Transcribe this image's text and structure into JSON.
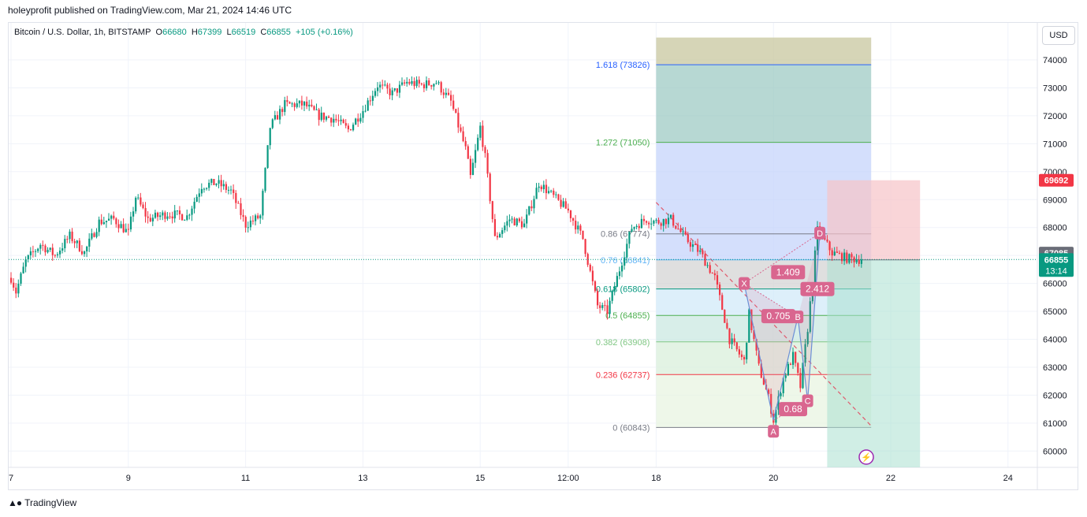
{
  "header": {
    "published": "holeyprofit published on TradingView.com, Mar 21, 2024 14:46 UTC"
  },
  "legend": {
    "symbol": "Bitcoin / U.S. Dollar, 1h, BITSTAMP",
    "o_label": "O",
    "o": "66680",
    "h_label": "H",
    "h": "67399",
    "l_label": "L",
    "l": "66519",
    "c_label": "C",
    "c": "66855",
    "change": "+105 (+0.16%)"
  },
  "currency_button": "USD",
  "footer": {
    "brand": "TradingView",
    "logo": "tradingview-logo-icon"
  },
  "colors": {
    "up": "#089981",
    "down": "#f23645",
    "grid": "#f0f3fa",
    "pattern": "#d9668f",
    "stop_zone": "#f7c3c7",
    "target_zone": "#a9e0cf"
  },
  "chart_data": {
    "type": "candlestick",
    "y_axis": {
      "min": 59500,
      "max": 74800,
      "ticks": [
        "74000",
        "73000",
        "72000",
        "71000",
        "70000",
        "69000",
        "68000",
        "67000",
        "66000",
        "65000",
        "64000",
        "63000",
        "62000",
        "61000",
        "60000"
      ]
    },
    "x_axis": {
      "ticks": [
        {
          "label": "7",
          "t": 0
        },
        {
          "label": "9",
          "t": 48
        },
        {
          "label": "11",
          "t": 96
        },
        {
          "label": "13",
          "t": 144
        },
        {
          "label": "15",
          "t": 192
        },
        {
          "label": "12:00",
          "t": 228
        },
        {
          "label": "18",
          "t": 264
        },
        {
          "label": "20",
          "t": 312
        },
        {
          "label": "22",
          "t": 360
        },
        {
          "label": "24",
          "t": 408
        }
      ]
    },
    "price_path": [
      [
        0,
        66200
      ],
      [
        2,
        65700
      ],
      [
        6,
        66800
      ],
      [
        12,
        67400
      ],
      [
        18,
        67000
      ],
      [
        24,
        67700
      ],
      [
        30,
        67100
      ],
      [
        36,
        68200
      ],
      [
        42,
        68300
      ],
      [
        48,
        67800
      ],
      [
        51,
        69100
      ],
      [
        56,
        68300
      ],
      [
        64,
        68500
      ],
      [
        72,
        68400
      ],
      [
        78,
        69500
      ],
      [
        84,
        69600
      ],
      [
        90,
        69300
      ],
      [
        96,
        68100
      ],
      [
        102,
        68400
      ],
      [
        106,
        71600
      ],
      [
        112,
        72400
      ],
      [
        120,
        72400
      ],
      [
        126,
        72000
      ],
      [
        132,
        71900
      ],
      [
        138,
        71500
      ],
      [
        144,
        72200
      ],
      [
        150,
        73100
      ],
      [
        156,
        72800
      ],
      [
        162,
        73200
      ],
      [
        168,
        73100
      ],
      [
        174,
        73200
      ],
      [
        180,
        72500
      ],
      [
        186,
        70800
      ],
      [
        188,
        69800
      ],
      [
        192,
        71600
      ],
      [
        194,
        70500
      ],
      [
        198,
        67600
      ],
      [
        204,
        68300
      ],
      [
        210,
        68100
      ],
      [
        216,
        69600
      ],
      [
        222,
        69100
      ],
      [
        228,
        68600
      ],
      [
        234,
        67600
      ],
      [
        240,
        65200
      ],
      [
        244,
        65000
      ],
      [
        248,
        66200
      ],
      [
        254,
        68000
      ],
      [
        260,
        68300
      ],
      [
        264,
        68200
      ],
      [
        270,
        68300
      ],
      [
        276,
        67600
      ],
      [
        282,
        67100
      ],
      [
        288,
        66200
      ],
      [
        294,
        64000
      ],
      [
        300,
        63200
      ],
      [
        302,
        64900
      ],
      [
        306,
        63000
      ],
      [
        310,
        61900
      ],
      [
        312,
        61100
      ],
      [
        316,
        62600
      ],
      [
        320,
        63400
      ],
      [
        323,
        62300
      ],
      [
        326,
        64400
      ],
      [
        330,
        67900
      ],
      [
        336,
        67100
      ],
      [
        342,
        66900
      ],
      [
        348,
        66850
      ]
    ],
    "last_price": "66855",
    "countdown": "13:14",
    "price_labels": [
      {
        "value": "69692",
        "color": "#f23645"
      },
      {
        "value": "67085",
        "color": "#6a6d78"
      }
    ],
    "fibonacci": {
      "t_start": 264,
      "t_end": 352,
      "levels": [
        {
          "label": "1.618 (73826)",
          "price": 73826,
          "color": "#2962ff"
        },
        {
          "label": "1.272 (71050)",
          "price": 71050,
          "color": "#4caf50"
        },
        {
          "label": "0.86 (67774)",
          "price": 67774,
          "color": "#787b86"
        },
        {
          "label": "0.76 (66841)",
          "price": 66841,
          "color": "#64b5f6"
        },
        {
          "label": "0.618 (65802)",
          "price": 65802,
          "color": "#089981"
        },
        {
          "label": "0.5 (64855)",
          "price": 64855,
          "color": "#4caf50"
        },
        {
          "label": "0.382 (63908)",
          "price": 63908,
          "color": "#81c784"
        },
        {
          "label": "0.236 (62737)",
          "price": 62737,
          "color": "#f23645"
        },
        {
          "label": "0 (60843)",
          "price": 60843,
          "color": "#787b86"
        }
      ],
      "top_fill_price": 74800
    },
    "pattern": {
      "points": [
        {
          "label": "X",
          "t": 300,
          "price": 66000
        },
        {
          "label": "A",
          "t": 312,
          "price": 61100
        },
        {
          "label": "B",
          "t": 322,
          "price": 64800
        },
        {
          "label": "C",
          "t": 326,
          "price": 61800
        },
        {
          "label": "D",
          "t": 331,
          "price": 67800
        }
      ],
      "ratios": [
        {
          "label": "1.409",
          "t": 318,
          "price": 66400
        },
        {
          "label": "0.705",
          "t": 314,
          "price": 64830
        },
        {
          "label": "2.412",
          "t": 330,
          "price": 65800
        },
        {
          "label": "0.68",
          "t": 320,
          "price": 61500
        }
      ]
    },
    "trend_line": {
      "t1": 264,
      "p1": 68900,
      "t2": 352,
      "p2": 60900
    },
    "position": {
      "t_start": 334,
      "t_end": 372,
      "entry": 66841,
      "stop": 69692,
      "target": 59500
    }
  }
}
